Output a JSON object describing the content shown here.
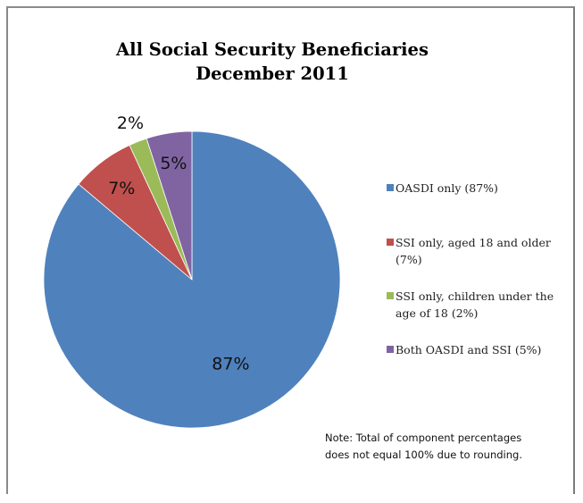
{
  "chart_data": {
    "type": "pie",
    "title": "All Social Security Beneficiaries",
    "subtitle": "December 2011",
    "start_angle_deg": 0,
    "direction": "clockwise",
    "slices": [
      {
        "name": "OASDI only (87%)",
        "value": 87,
        "label": "87%",
        "color": "#4F81BD"
      },
      {
        "name": "SSI only, aged 18 and older (7%)",
        "value": 7,
        "label": "7%",
        "color": "#C0504D"
      },
      {
        "name": "SSI only, children under the age of 18 (2%)",
        "value": 2,
        "label": "2%",
        "color": "#9BBB59"
      },
      {
        "name": "Both OASDI and SSI (5%)",
        "value": 5,
        "label": "5%",
        "color": "#8064A2"
      }
    ],
    "legend_position": "right",
    "note": "Note: Total of component percentages does not equal 100% due to rounding."
  },
  "legend": {
    "items": [
      {
        "label": "OASDI only (87%)",
        "color": "#4F81BD"
      },
      {
        "label": "SSI only, aged 18 and older (7%)",
        "color": "#C0504D"
      },
      {
        "label": "SSI only, children under the age of 18 (2%)",
        "color": "#9BBB59"
      },
      {
        "label": "Both OASDI and SSI (5%)",
        "color": "#8064A2"
      }
    ]
  },
  "note_lines": [
    "Note: Total of component percentages",
    "does not equal 100% due to rounding."
  ]
}
